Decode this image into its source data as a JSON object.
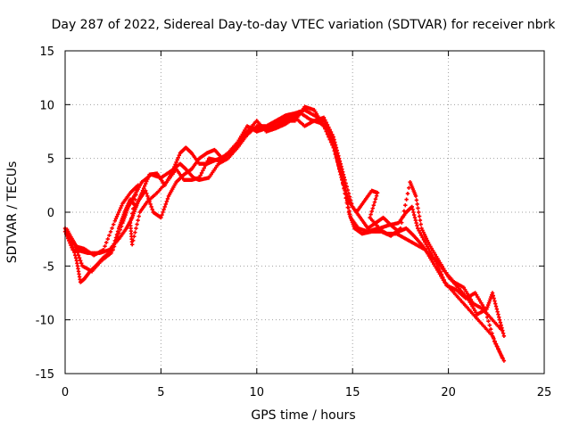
{
  "chart_data": {
    "type": "scatter",
    "title": "Day 287 of 2022, Sidereal Day-to-day VTEC variation (SDTVAR) for receiver nbrk",
    "xlabel": "GPS time / hours",
    "ylabel": "SDTVAR / TECUs",
    "xlim": [
      0,
      25
    ],
    "ylim": [
      -15,
      15
    ],
    "xticks": [
      0,
      5,
      10,
      15,
      20,
      25
    ],
    "yticks": [
      -15,
      -10,
      -5,
      0,
      5,
      10,
      15
    ],
    "grid": true,
    "marker": "+",
    "series": [
      {
        "name": "track-a",
        "color": "#ff0000",
        "points": [
          [
            0.0,
            -1.5
          ],
          [
            0.3,
            -2.5
          ],
          [
            0.6,
            -4.5
          ],
          [
            0.8,
            -6.5
          ],
          [
            1.0,
            -6.2
          ],
          [
            1.3,
            -5.5
          ],
          [
            1.6,
            -5.0
          ],
          [
            2.0,
            -4.2
          ],
          [
            2.5,
            -3.5
          ],
          [
            3.0,
            -1.0
          ],
          [
            3.3,
            0.5
          ],
          [
            3.6,
            1.5
          ],
          [
            4.0,
            2.8
          ],
          [
            4.5,
            3.5
          ],
          [
            5.0,
            3.2
          ],
          [
            5.5,
            3.8
          ],
          [
            6.0,
            4.5
          ],
          [
            6.3,
            4.0
          ],
          [
            6.7,
            3.2
          ],
          [
            7.0,
            3.0
          ],
          [
            7.5,
            3.2
          ],
          [
            8.0,
            4.5
          ],
          [
            8.5,
            5.0
          ],
          [
            9.0,
            6.0
          ],
          [
            9.5,
            7.2
          ],
          [
            10.0,
            8.0
          ],
          [
            10.5,
            8.0
          ],
          [
            11.0,
            8.5
          ],
          [
            11.5,
            9.0
          ],
          [
            12.0,
            9.2
          ],
          [
            12.5,
            9.5
          ],
          [
            13.0,
            9.0
          ],
          [
            13.5,
            8.5
          ],
          [
            14.0,
            6.5
          ],
          [
            14.3,
            4.0
          ],
          [
            14.6,
            2.0
          ],
          [
            14.9,
            -0.5
          ],
          [
            15.3,
            -1.5
          ],
          [
            15.8,
            -1.8
          ],
          [
            16.3,
            -1.5
          ],
          [
            16.8,
            -2.0
          ],
          [
            17.3,
            -2.0
          ],
          [
            17.8,
            -2.5
          ],
          [
            18.3,
            -3.0
          ],
          [
            18.8,
            -3.5
          ],
          [
            19.3,
            -5.0
          ],
          [
            19.8,
            -6.5
          ],
          [
            20.3,
            -7.5
          ],
          [
            20.8,
            -8.5
          ],
          [
            21.3,
            -9.5
          ],
          [
            21.8,
            -10.5
          ],
          [
            22.3,
            -11.5
          ],
          [
            22.8,
            -13.5
          ]
        ]
      },
      {
        "name": "track-b",
        "color": "#ff0000",
        "points": [
          [
            0.0,
            -1.8
          ],
          [
            0.4,
            -3.5
          ],
          [
            0.8,
            -3.6
          ],
          [
            1.2,
            -3.8
          ],
          [
            1.8,
            -3.8
          ],
          [
            2.3,
            -3.5
          ],
          [
            2.8,
            -2.5
          ],
          [
            3.2,
            -1.5
          ],
          [
            3.5,
            -0.5
          ],
          [
            3.8,
            1.0
          ],
          [
            4.2,
            2.0
          ],
          [
            4.6,
            0.0
          ],
          [
            5.0,
            -0.5
          ],
          [
            5.4,
            1.5
          ],
          [
            5.8,
            2.8
          ],
          [
            6.2,
            3.5
          ],
          [
            6.6,
            4.0
          ],
          [
            7.0,
            5.0
          ],
          [
            7.4,
            5.5
          ],
          [
            7.8,
            5.8
          ],
          [
            8.2,
            5.0
          ],
          [
            8.6,
            5.5
          ],
          [
            9.0,
            6.2
          ],
          [
            9.5,
            7.5
          ],
          [
            10.0,
            8.5
          ],
          [
            10.5,
            7.5
          ],
          [
            11.0,
            7.8
          ],
          [
            11.5,
            8.2
          ],
          [
            12.0,
            8.8
          ],
          [
            12.5,
            8.0
          ],
          [
            13.0,
            8.5
          ],
          [
            13.5,
            8.8
          ],
          [
            14.0,
            7.0
          ],
          [
            14.3,
            5.0
          ],
          [
            14.6,
            3.0
          ],
          [
            15.0,
            0.5
          ],
          [
            15.4,
            -0.5
          ],
          [
            15.8,
            -1.5
          ],
          [
            16.2,
            -1.0
          ],
          [
            16.6,
            -0.5
          ],
          [
            17.0,
            -1.2
          ],
          [
            17.4,
            -1.8
          ],
          [
            17.8,
            -1.5
          ],
          [
            18.2,
            -2.2
          ],
          [
            18.6,
            -3.0
          ],
          [
            19.0,
            -4.0
          ],
          [
            19.4,
            -4.5
          ],
          [
            19.8,
            -5.5
          ],
          [
            20.3,
            -6.5
          ],
          [
            20.8,
            -7.0
          ],
          [
            21.3,
            -8.5
          ],
          [
            21.8,
            -9.0
          ],
          [
            22.3,
            -10.0
          ],
          [
            22.8,
            -11.0
          ]
        ]
      },
      {
        "name": "track-c",
        "color": "#ff0000",
        "points": [
          [
            0.1,
            -1.6
          ],
          [
            0.5,
            -3.0
          ],
          [
            0.9,
            -5.0
          ],
          [
            1.4,
            -5.5
          ],
          [
            1.9,
            -4.5
          ],
          [
            2.4,
            -3.8
          ],
          [
            2.8,
            -1.5
          ],
          [
            3.1,
            0.0
          ],
          [
            3.4,
            1.2
          ],
          [
            3.7,
            0.5
          ],
          [
            4.0,
            1.8
          ],
          [
            4.4,
            3.5
          ],
          [
            4.8,
            3.6
          ],
          [
            5.2,
            2.5
          ],
          [
            5.6,
            3.8
          ],
          [
            6.0,
            5.5
          ],
          [
            6.3,
            6.0
          ],
          [
            6.6,
            5.5
          ],
          [
            7.0,
            4.5
          ],
          [
            7.4,
            4.5
          ],
          [
            7.8,
            4.8
          ],
          [
            8.3,
            5.2
          ],
          [
            8.8,
            5.8
          ],
          [
            9.3,
            6.8
          ],
          [
            9.8,
            7.8
          ],
          [
            10.3,
            7.8
          ],
          [
            10.8,
            8.2
          ],
          [
            11.3,
            8.6
          ],
          [
            11.8,
            8.8
          ],
          [
            12.3,
            9.2
          ],
          [
            12.8,
            8.6
          ],
          [
            13.3,
            8.3
          ],
          [
            13.8,
            7.5
          ],
          [
            14.1,
            5.5
          ],
          [
            14.5,
            3.0
          ],
          [
            14.8,
            1.0
          ],
          [
            15.2,
            0.0
          ],
          [
            15.6,
            1.0
          ],
          [
            16.0,
            2.0
          ],
          [
            16.3,
            1.8
          ],
          [
            15.9,
            -0.5
          ],
          [
            16.4,
            -1.5
          ],
          [
            16.9,
            -1.2
          ],
          [
            17.4,
            -1.0
          ],
          [
            17.8,
            0.0
          ],
          [
            18.1,
            0.5
          ],
          [
            18.4,
            -1.5
          ],
          [
            18.9,
            -3.2
          ],
          [
            19.4,
            -4.8
          ],
          [
            19.9,
            -6.8
          ],
          [
            20.4,
            -7.2
          ],
          [
            20.9,
            -8.0
          ],
          [
            21.4,
            -7.5
          ],
          [
            21.9,
            -9.0
          ],
          [
            22.4,
            -12.0
          ],
          [
            22.9,
            -13.8
          ]
        ]
      },
      {
        "name": "track-d",
        "color": "#ff0000",
        "points": [
          [
            0.2,
            -2.0
          ],
          [
            0.6,
            -3.2
          ],
          [
            1.0,
            -3.4
          ],
          [
            1.5,
            -4.0
          ],
          [
            2.0,
            -3.5
          ],
          [
            2.6,
            -0.8
          ],
          [
            3.0,
            0.8
          ],
          [
            3.4,
            1.8
          ],
          [
            3.8,
            2.5
          ],
          [
            3.4,
            -1.0
          ],
          [
            3.5,
            -3.0
          ],
          [
            3.9,
            0.0
          ],
          [
            4.3,
            1.0
          ],
          [
            4.8,
            1.8
          ],
          [
            5.3,
            2.8
          ],
          [
            5.8,
            4.0
          ],
          [
            6.2,
            3.0
          ],
          [
            6.6,
            3.0
          ],
          [
            7.0,
            3.2
          ],
          [
            7.5,
            5.0
          ],
          [
            8.0,
            4.8
          ],
          [
            8.5,
            5.5
          ],
          [
            9.0,
            6.5
          ],
          [
            9.5,
            8.0
          ],
          [
            10.0,
            7.5
          ],
          [
            10.5,
            7.8
          ],
          [
            11.0,
            8.0
          ],
          [
            11.5,
            8.5
          ],
          [
            12.0,
            8.5
          ],
          [
            12.5,
            9.8
          ],
          [
            13.0,
            9.5
          ],
          [
            13.5,
            8.0
          ],
          [
            14.0,
            6.0
          ],
          [
            14.4,
            3.5
          ],
          [
            14.8,
            0.0
          ],
          [
            15.1,
            -1.5
          ],
          [
            15.5,
            -2.0
          ],
          [
            16.0,
            -1.8
          ],
          [
            16.5,
            -1.8
          ],
          [
            17.0,
            -2.2
          ],
          [
            17.5,
            -1.5
          ],
          [
            18.0,
            2.8
          ],
          [
            18.3,
            1.5
          ],
          [
            18.6,
            -1.5
          ],
          [
            19.0,
            -3.0
          ],
          [
            19.5,
            -4.5
          ],
          [
            20.0,
            -6.0
          ],
          [
            20.5,
            -7.0
          ],
          [
            21.0,
            -8.0
          ],
          [
            21.5,
            -9.5
          ],
          [
            22.0,
            -9.0
          ],
          [
            22.3,
            -7.5
          ],
          [
            22.6,
            -9.5
          ],
          [
            22.9,
            -11.5
          ]
        ]
      }
    ]
  }
}
